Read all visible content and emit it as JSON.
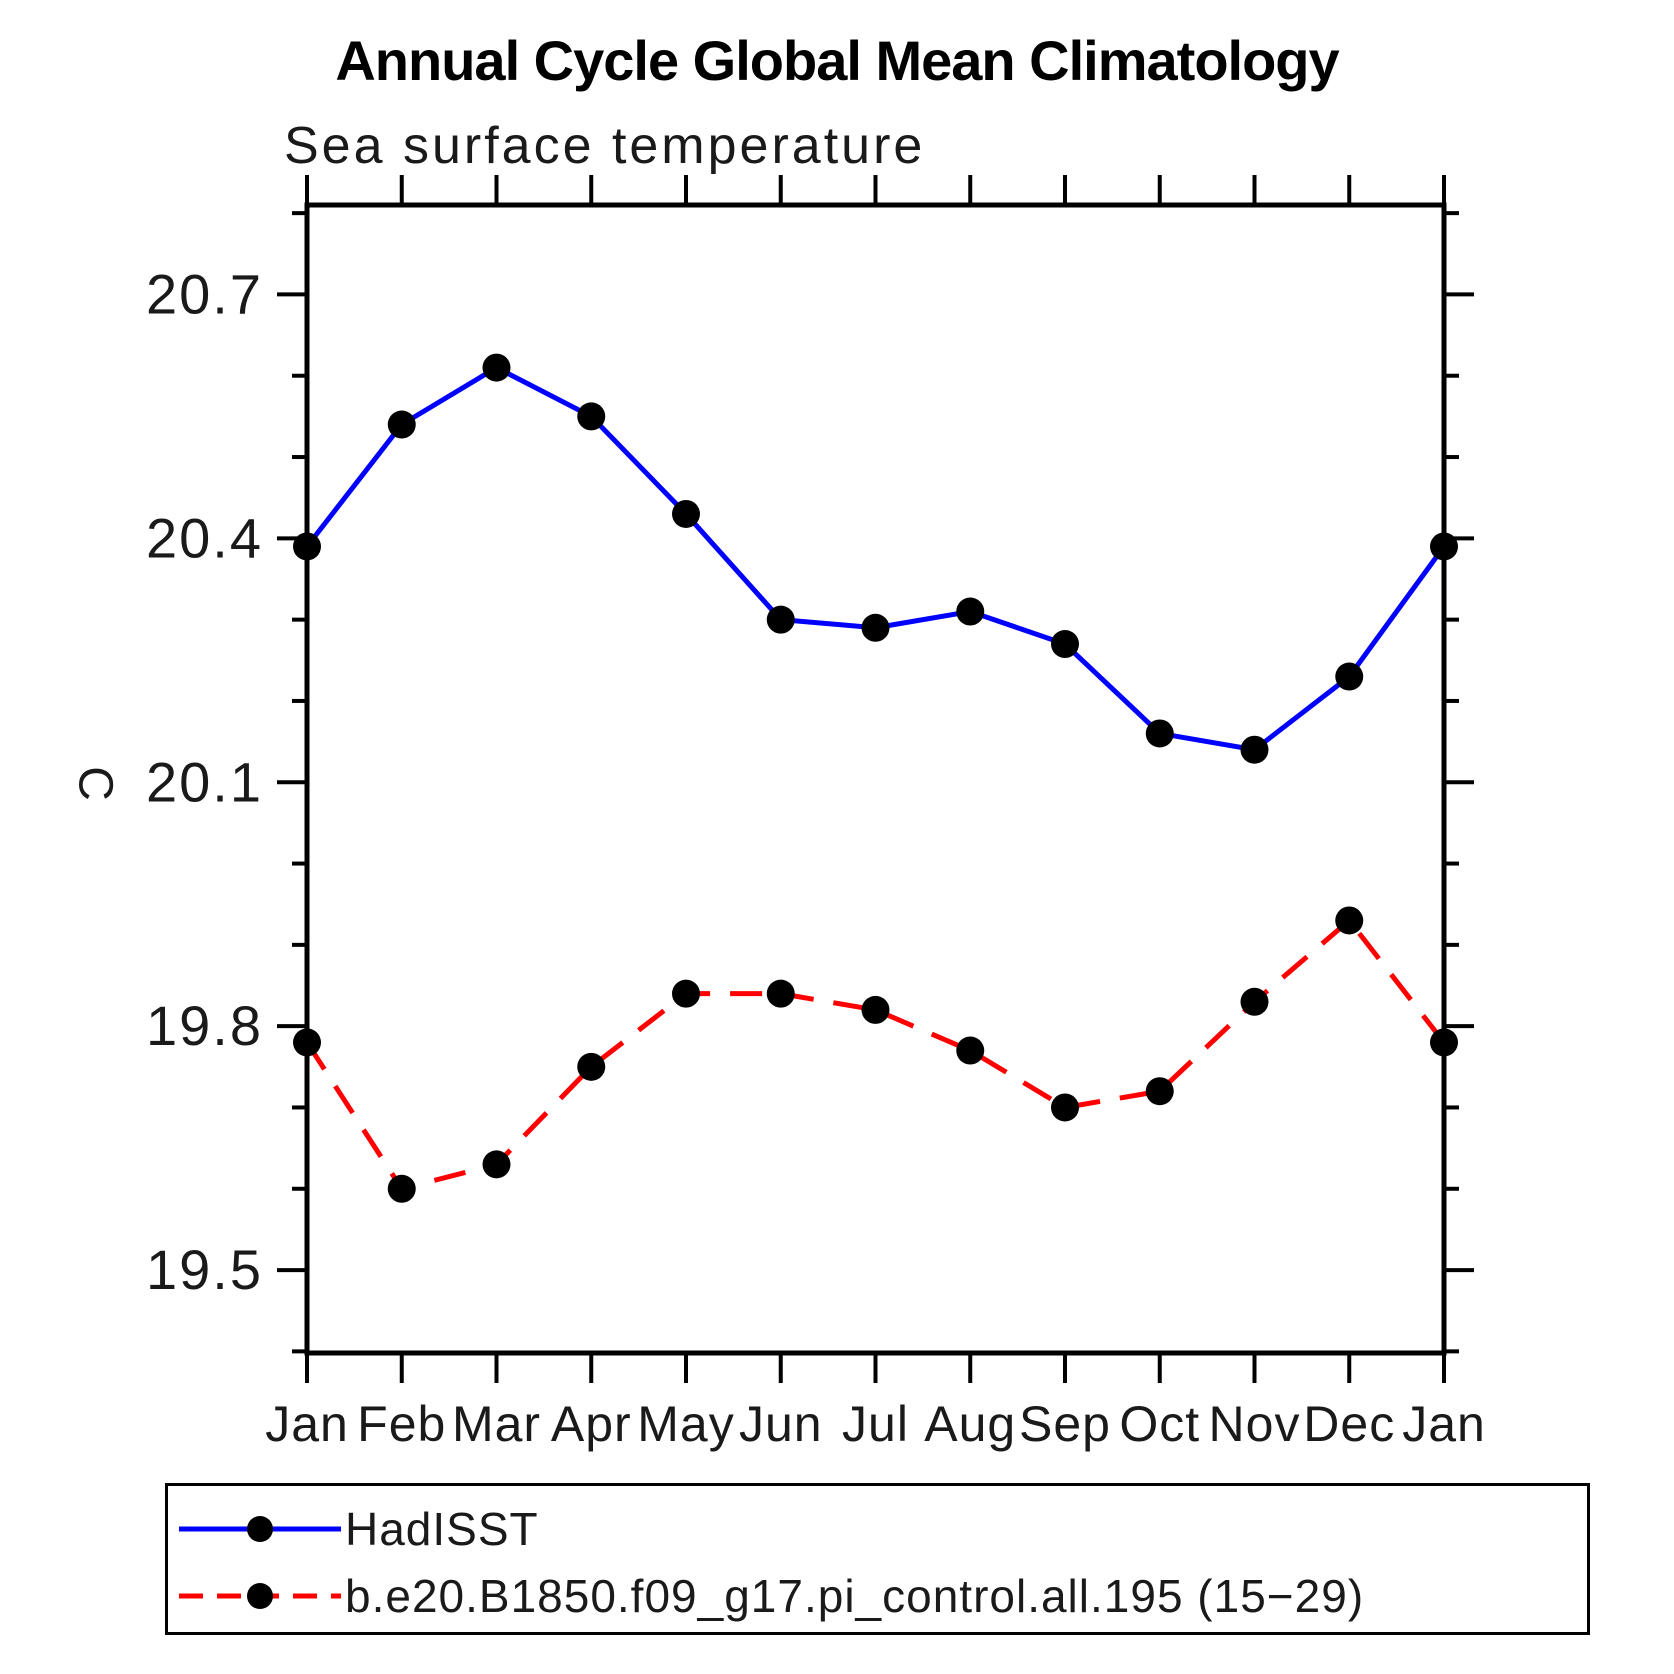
{
  "page": {
    "background": "#ffffff"
  },
  "chart": {
    "title": "Annual Cycle Global Mean Climatology",
    "subtitle": "Sea surface temperature",
    "ylabel": "C"
  },
  "legend": {
    "entries": [
      {
        "label": "HadISST",
        "color": "#0000ff",
        "style": "solid"
      },
      {
        "label": "b.e20.B1850.f09_g17.pi_control.all.195 (15−29)",
        "color": "#ff0000",
        "style": "dashed"
      }
    ],
    "marker_color": "#000000"
  },
  "chart_data": {
    "type": "line",
    "title": "Annual Cycle Global Mean Climatology",
    "subtitle": "Sea surface temperature",
    "xlabel": "",
    "ylabel": "C",
    "categories": [
      "Jan",
      "Feb",
      "Mar",
      "Apr",
      "May",
      "Jun",
      "Jul",
      "Aug",
      "Sep",
      "Oct",
      "Nov",
      "Dec",
      "Jan"
    ],
    "series": [
      {
        "name": "HadISST",
        "color": "#0000ff",
        "style": "solid",
        "marker": "circle",
        "marker_color": "#000000",
        "values": [
          20.39,
          20.54,
          20.61,
          20.55,
          20.43,
          20.3,
          20.29,
          20.31,
          20.27,
          20.16,
          20.14,
          20.23,
          20.39
        ]
      },
      {
        "name": "b.e20.B1850.f09_g17.pi_control.all.195 (15−29)",
        "color": "#ff0000",
        "style": "dashed",
        "marker": "circle",
        "marker_color": "#000000",
        "values": [
          19.78,
          19.6,
          19.63,
          19.75,
          19.84,
          19.84,
          19.82,
          19.77,
          19.7,
          19.72,
          19.83,
          19.93,
          19.78
        ]
      }
    ],
    "ylim": [
      19.398,
      20.81
    ],
    "yticks_major": [
      19.5,
      19.8,
      20.1,
      20.4,
      20.7
    ],
    "ytick_labels": [
      "19.5",
      "19.8",
      "20.1",
      "20.4",
      "20.7"
    ],
    "minor_tick_interval": 0.1,
    "grid": false,
    "legend_position": "bottom",
    "axis_color": "#000000",
    "tick_label_color": "#1a1a1a"
  }
}
